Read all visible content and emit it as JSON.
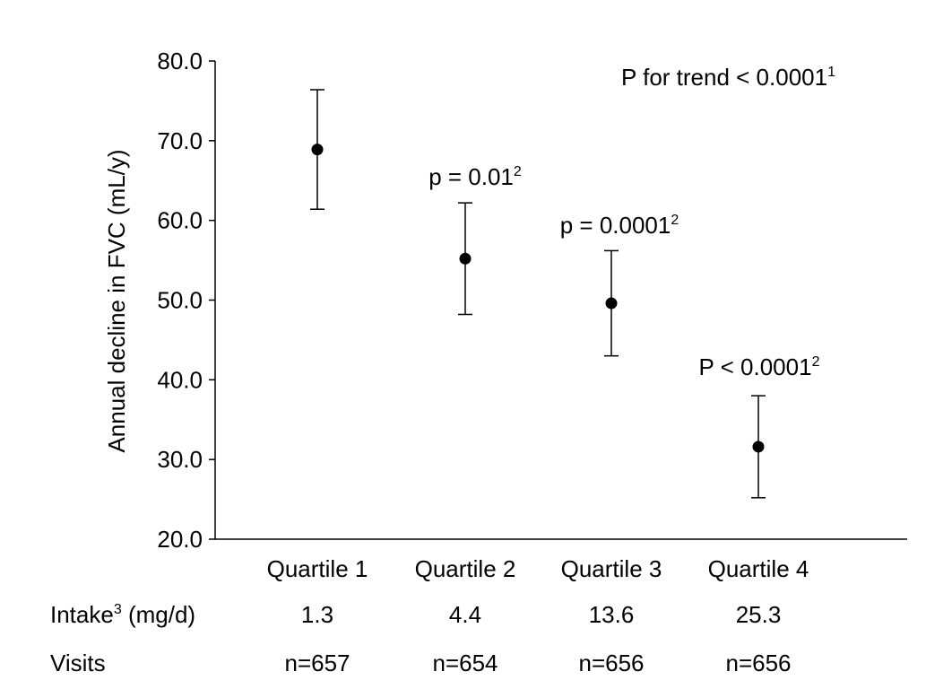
{
  "chart_data": {
    "type": "scatter",
    "ylabel": "Annual decline in FVC (mL/y)",
    "ylim": [
      20,
      80
    ],
    "yticks": [
      "20.0",
      "30.0",
      "40.0",
      "50.0",
      "60.0",
      "70.0",
      "80.0"
    ],
    "categories": [
      "Quartile 1",
      "Quartile 2",
      "Quartile 3",
      "Quartile 4"
    ],
    "points": [
      {
        "category": "Quartile 1",
        "value": 68.9,
        "lower": 61.4,
        "upper": 76.4
      },
      {
        "category": "Quartile 2",
        "value": 55.2,
        "lower": 48.2,
        "upper": 62.2
      },
      {
        "category": "Quartile 3",
        "value": 49.6,
        "lower": 43.0,
        "upper": 56.2
      },
      {
        "category": "Quartile 4",
        "value": 31.6,
        "lower": 25.2,
        "upper": 38.0
      }
    ],
    "annotations": [
      {
        "text": "P for trend < 0.0001",
        "sup": "1"
      },
      {
        "text": "p = 0.01",
        "sup": "2",
        "category": "Quartile 2"
      },
      {
        "text": "p = 0.0001",
        "sup": "2",
        "category": "Quartile 3"
      },
      {
        "text": "P < 0.0001",
        "sup": "2",
        "category": "Quartile 4"
      }
    ],
    "grid": false,
    "legend": "none"
  },
  "table": {
    "intake": {
      "label": "Intake",
      "label_sup": "3",
      "label_unit": " (mg/d)",
      "values": [
        "1.3",
        "4.4",
        "13.6",
        "25.3"
      ]
    },
    "visits": {
      "label": "Visits",
      "values": [
        "n=657",
        "n=654",
        "n=656",
        "n=656"
      ]
    }
  },
  "colors": {
    "marker": "#000000",
    "axis": "#000000"
  }
}
